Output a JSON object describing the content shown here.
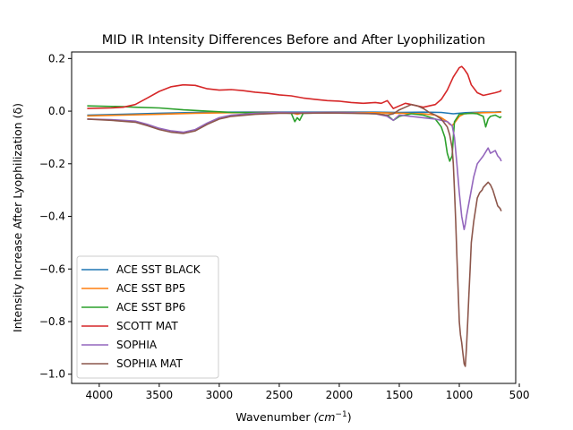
{
  "chart_data": {
    "type": "line",
    "title": "MID IR Intensity Differences Before and After Lyophilization",
    "xlabel": "Wavenumber",
    "xlabel_unit": "(cm",
    "xlabel_unit_sup": "−1",
    "xlabel_unit_close": ")",
    "ylabel": "Intensity Increase After Lyophilization (δ)",
    "xlim": [
      4230,
      530
    ],
    "ylim": [
      -1.035,
      0.225
    ],
    "x_reversed": true,
    "grid": false,
    "legend_position": "lower-left",
    "xticks": [
      {
        "value": 4000,
        "label": "4000"
      },
      {
        "value": 3500,
        "label": "3500"
      },
      {
        "value": 3000,
        "label": "3000"
      },
      {
        "value": 2500,
        "label": "2500"
      },
      {
        "value": 2000,
        "label": "2000"
      },
      {
        "value": 1500,
        "label": "1500"
      },
      {
        "value": 1000,
        "label": "1000"
      },
      {
        "value": 500,
        "label": "500"
      }
    ],
    "yticks": [
      {
        "value": 0.2,
        "label": "0.2"
      },
      {
        "value": 0.0,
        "label": "0.0"
      },
      {
        "value": -0.2,
        "label": "−0.2"
      },
      {
        "value": -0.4,
        "label": "−0.4"
      },
      {
        "value": -0.6,
        "label": "−0.6"
      },
      {
        "value": -0.8,
        "label": "−0.8"
      },
      {
        "value": -1.0,
        "label": "−1.0"
      }
    ],
    "series": [
      {
        "name": "ACE SST BLACK",
        "color": "#1f77b4",
        "x": [
          4100,
          3800,
          3500,
          3200,
          2900,
          2600,
          2300,
          2000,
          1700,
          1500,
          1300,
          1150,
          1050,
          1000,
          950,
          900,
          800,
          700,
          650
        ],
        "y": [
          -0.015,
          -0.012,
          -0.008,
          -0.005,
          -0.004,
          -0.003,
          -0.004,
          -0.003,
          -0.004,
          -0.005,
          -0.004,
          -0.005,
          -0.01,
          -0.008,
          -0.006,
          -0.005,
          -0.004,
          -0.003,
          -0.002
        ]
      },
      {
        "name": "ACE SST BP5",
        "color": "#ff7f0e",
        "x": [
          4100,
          3800,
          3500,
          3200,
          2900,
          2600,
          2400,
          2350,
          2300,
          2000,
          1700,
          1500,
          1300,
          1200,
          1150,
          1100,
          1080,
          1060,
          1040,
          1000,
          960,
          900,
          800,
          700,
          650
        ],
        "y": [
          -0.018,
          -0.015,
          -0.012,
          -0.008,
          -0.006,
          -0.005,
          -0.006,
          -0.012,
          -0.006,
          -0.005,
          -0.006,
          -0.008,
          -0.01,
          -0.015,
          -0.025,
          -0.04,
          -0.05,
          -0.055,
          -0.045,
          -0.02,
          -0.01,
          -0.008,
          -0.006,
          -0.005,
          -0.004
        ]
      },
      {
        "name": "ACE SST BP6",
        "color": "#2ca02c",
        "x": [
          4100,
          3900,
          3800,
          3700,
          3500,
          3300,
          3100,
          2900,
          2700,
          2500,
          2400,
          2370,
          2350,
          2330,
          2300,
          2100,
          1900,
          1700,
          1600,
          1550,
          1500,
          1450,
          1400,
          1300,
          1200,
          1150,
          1120,
          1100,
          1080,
          1060,
          1050,
          1040,
          1000,
          960,
          900,
          850,
          800,
          780,
          760,
          740,
          700,
          680,
          660,
          650
        ],
        "y": [
          0.02,
          0.018,
          0.017,
          0.015,
          0.012,
          0.005,
          0.0,
          -0.005,
          -0.006,
          -0.006,
          -0.008,
          -0.04,
          -0.025,
          -0.035,
          -0.008,
          -0.006,
          -0.007,
          -0.01,
          -0.015,
          -0.035,
          -0.02,
          -0.015,
          -0.01,
          -0.015,
          -0.03,
          -0.06,
          -0.1,
          -0.16,
          -0.19,
          -0.17,
          -0.1,
          -0.04,
          -0.012,
          -0.01,
          -0.008,
          -0.01,
          -0.02,
          -0.06,
          -0.03,
          -0.02,
          -0.015,
          -0.02,
          -0.025,
          -0.02
        ]
      },
      {
        "name": "SCOTT MAT",
        "color": "#d62728",
        "x": [
          4100,
          3900,
          3800,
          3700,
          3600,
          3500,
          3400,
          3300,
          3200,
          3100,
          3000,
          2900,
          2800,
          2700,
          2600,
          2500,
          2400,
          2300,
          2200,
          2100,
          2000,
          1900,
          1800,
          1700,
          1650,
          1600,
          1550,
          1500,
          1450,
          1400,
          1300,
          1200,
          1150,
          1100,
          1050,
          1000,
          980,
          960,
          930,
          900,
          850,
          800,
          750,
          700,
          660,
          650
        ],
        "y": [
          0.01,
          0.012,
          0.015,
          0.025,
          0.05,
          0.075,
          0.093,
          0.1,
          0.098,
          0.085,
          0.08,
          0.082,
          0.078,
          0.072,
          0.068,
          0.062,
          0.058,
          0.05,
          0.045,
          0.04,
          0.038,
          0.033,
          0.03,
          0.033,
          0.03,
          0.04,
          0.01,
          0.02,
          0.03,
          0.025,
          0.015,
          0.025,
          0.045,
          0.08,
          0.13,
          0.165,
          0.17,
          0.16,
          0.14,
          0.1,
          0.07,
          0.06,
          0.065,
          0.07,
          0.075,
          0.08
        ]
      },
      {
        "name": "SOPHIA",
        "color": "#9467bd",
        "x": [
          4100,
          3900,
          3700,
          3600,
          3500,
          3400,
          3300,
          3200,
          3100,
          3000,
          2900,
          2700,
          2500,
          2300,
          2100,
          1900,
          1700,
          1600,
          1550,
          1500,
          1400,
          1300,
          1200,
          1100,
          1060,
          1040,
          1020,
          1000,
          980,
          960,
          950,
          940,
          920,
          900,
          880,
          850,
          800,
          780,
          760,
          740,
          700,
          680,
          660,
          650
        ],
        "y": [
          -0.03,
          -0.032,
          -0.038,
          -0.05,
          -0.065,
          -0.075,
          -0.08,
          -0.07,
          -0.045,
          -0.025,
          -0.015,
          -0.008,
          -0.005,
          -0.006,
          -0.005,
          -0.006,
          -0.01,
          -0.02,
          -0.035,
          -0.015,
          -0.02,
          -0.025,
          -0.03,
          -0.04,
          -0.055,
          -0.1,
          -0.2,
          -0.31,
          -0.4,
          -0.45,
          -0.43,
          -0.4,
          -0.35,
          -0.3,
          -0.25,
          -0.2,
          -0.17,
          -0.155,
          -0.14,
          -0.16,
          -0.15,
          -0.17,
          -0.18,
          -0.19
        ]
      },
      {
        "name": "SOPHIA MAT",
        "color": "#8c564b",
        "x": [
          4100,
          3900,
          3700,
          3600,
          3500,
          3400,
          3300,
          3200,
          3100,
          3000,
          2900,
          2700,
          2500,
          2300,
          2100,
          1900,
          1700,
          1600,
          1550,
          1500,
          1450,
          1400,
          1350,
          1300,
          1250,
          1200,
          1150,
          1100,
          1080,
          1060,
          1050,
          1040,
          1030,
          1020,
          1010,
          1000,
          990,
          980,
          970,
          960,
          950,
          940,
          930,
          920,
          910,
          900,
          880,
          860,
          850,
          830,
          810,
          800,
          780,
          760,
          740,
          720,
          700,
          680,
          660,
          650
        ],
        "y": [
          -0.03,
          -0.035,
          -0.042,
          -0.055,
          -0.07,
          -0.08,
          -0.085,
          -0.075,
          -0.05,
          -0.03,
          -0.02,
          -0.012,
          -0.008,
          -0.008,
          -0.007,
          -0.008,
          -0.01,
          -0.015,
          -0.01,
          0.005,
          0.015,
          0.025,
          0.02,
          0.01,
          -0.005,
          -0.015,
          -0.03,
          -0.06,
          -0.09,
          -0.14,
          -0.2,
          -0.3,
          -0.42,
          -0.55,
          -0.68,
          -0.8,
          -0.85,
          -0.88,
          -0.92,
          -0.96,
          -0.97,
          -0.9,
          -0.8,
          -0.7,
          -0.6,
          -0.5,
          -0.42,
          -0.36,
          -0.33,
          -0.31,
          -0.3,
          -0.29,
          -0.28,
          -0.27,
          -0.28,
          -0.3,
          -0.33,
          -0.36,
          -0.37,
          -0.38
        ]
      }
    ]
  }
}
